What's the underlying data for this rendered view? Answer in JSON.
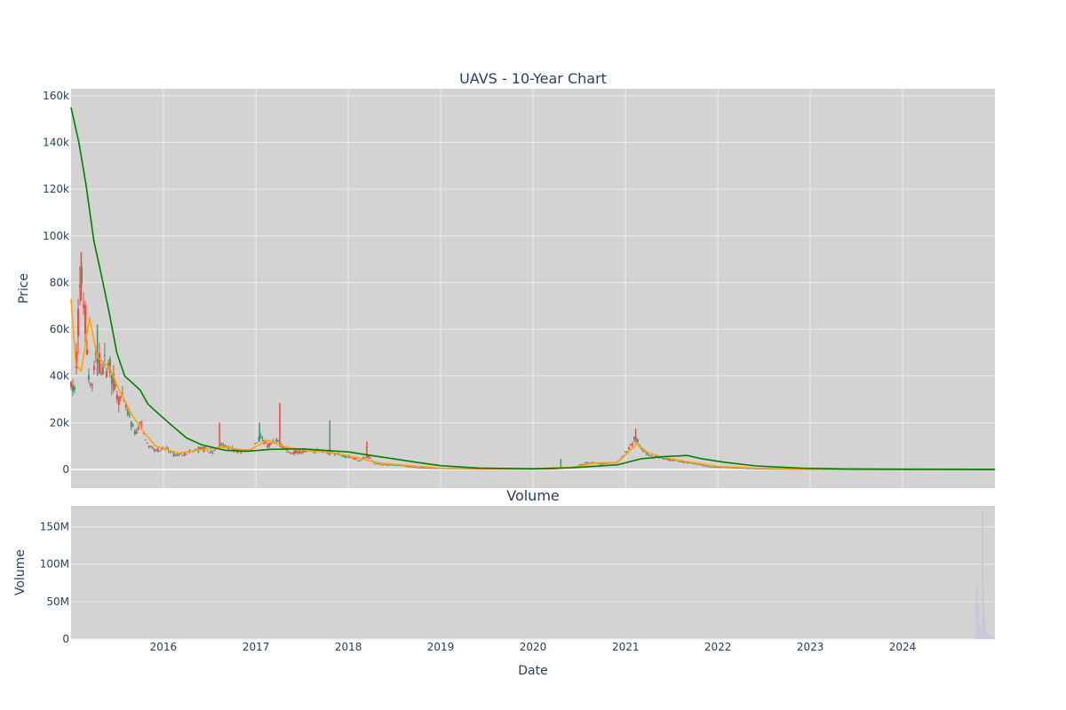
{
  "chart_data": [
    {
      "type": "candlestick",
      "title": "UAVS - 10-Year Chart",
      "ylabel": "Price",
      "xlabel": "",
      "xlim": [
        "2015-01-01",
        "2024-12-31"
      ],
      "ylim": [
        -8000,
        163000
      ],
      "y_ticks": [
        0,
        20000,
        40000,
        60000,
        80000,
        100000,
        120000,
        140000,
        160000
      ],
      "y_tick_labels": [
        "0",
        "20k",
        "40k",
        "60k",
        "80k",
        "100k",
        "120k",
        "140k",
        "160k"
      ],
      "x_ticks": [
        "2016-01-01",
        "2017-01-01",
        "2018-01-01",
        "2019-01-01",
        "2020-01-01",
        "2021-01-01",
        "2022-01-01",
        "2023-01-01",
        "2024-01-01"
      ],
      "x_tick_labels": [
        "2016",
        "2017",
        "2018",
        "2019",
        "2020",
        "2021",
        "2022",
        "2023",
        "2024"
      ],
      "show_x_tick_labels": false,
      "grid": true,
      "increasing_color": "#3d9970",
      "decreasing_color": "#ff4136",
      "price_key_points": [
        [
          "2015-01-01",
          36000
        ],
        [
          "2015-01-15",
          33000
        ],
        [
          "2015-02-01",
          70000
        ],
        [
          "2015-02-10",
          85000
        ],
        [
          "2015-02-20",
          70000
        ],
        [
          "2015-03-01",
          62000
        ],
        [
          "2015-03-10",
          40000
        ],
        [
          "2015-03-25",
          35000
        ],
        [
          "2015-04-10",
          48000
        ],
        [
          "2015-05-01",
          44000
        ],
        [
          "2015-06-01",
          45000
        ],
        [
          "2015-07-01",
          32000
        ],
        [
          "2015-08-01",
          28000
        ],
        [
          "2015-09-01",
          18000
        ],
        [
          "2015-09-15",
          15000
        ],
        [
          "2015-10-01",
          20000
        ],
        [
          "2015-11-01",
          10000
        ],
        [
          "2015-12-15",
          8000
        ],
        [
          "2016-01-15",
          9000
        ],
        [
          "2016-02-15",
          6000
        ],
        [
          "2016-04-01",
          7000
        ],
        [
          "2016-06-01",
          9000
        ],
        [
          "2016-07-15",
          7000
        ],
        [
          "2016-08-15",
          11000
        ],
        [
          "2016-09-15",
          9000
        ],
        [
          "2016-11-01",
          7500
        ],
        [
          "2016-12-15",
          8500
        ],
        [
          "2017-01-15",
          14000
        ],
        [
          "2017-02-15",
          10000
        ],
        [
          "2017-04-01",
          12000
        ],
        [
          "2017-05-15",
          7000
        ],
        [
          "2017-07-01",
          8000
        ],
        [
          "2017-09-01",
          8000
        ],
        [
          "2017-11-01",
          7000
        ],
        [
          "2018-01-01",
          5500
        ],
        [
          "2018-02-15",
          4000
        ],
        [
          "2018-03-20",
          6000
        ],
        [
          "2018-04-15",
          2500
        ],
        [
          "2018-06-01",
          2000
        ],
        [
          "2018-08-01",
          1800
        ],
        [
          "2018-10-01",
          800
        ],
        [
          "2019-01-01",
          500
        ],
        [
          "2019-06-01",
          300
        ],
        [
          "2020-01-01",
          250
        ],
        [
          "2020-04-01",
          400
        ],
        [
          "2020-06-01",
          1000
        ],
        [
          "2020-08-01",
          3000
        ],
        [
          "2020-10-01",
          2500
        ],
        [
          "2020-12-01",
          3000
        ],
        [
          "2021-01-15",
          9000
        ],
        [
          "2021-02-10",
          14000
        ],
        [
          "2021-03-01",
          9000
        ],
        [
          "2021-04-01",
          6000
        ],
        [
          "2021-06-01",
          4500
        ],
        [
          "2021-08-01",
          3500
        ],
        [
          "2021-10-01",
          2500
        ],
        [
          "2021-12-01",
          1200
        ],
        [
          "2022-03-01",
          800
        ],
        [
          "2022-06-01",
          400
        ],
        [
          "2022-09-01",
          250
        ],
        [
          "2023-01-01",
          150
        ],
        [
          "2023-06-01",
          80
        ],
        [
          "2024-01-01",
          50
        ],
        [
          "2024-12-31",
          20
        ]
      ],
      "price_spikes": [
        [
          "2015-02-10",
          93000
        ],
        [
          "2015-04-15",
          62000
        ],
        [
          "2016-08-10",
          20000
        ],
        [
          "2017-01-15",
          20000
        ],
        [
          "2017-04-05",
          28500
        ],
        [
          "2017-10-20",
          21000
        ],
        [
          "2018-03-15",
          12000
        ],
        [
          "2020-04-20",
          4500
        ],
        [
          "2021-02-10",
          17500
        ]
      ],
      "series": [
        {
          "type": "line",
          "color": "#ffa500",
          "points": [
            [
              "2015-01-01",
              73000
            ],
            [
              "2015-01-20",
              45000
            ],
            [
              "2015-02-10",
              42000
            ],
            [
              "2015-03-15",
              65000
            ],
            [
              "2015-04-15",
              48000
            ],
            [
              "2015-06-01",
              44000
            ],
            [
              "2015-07-15",
              33000
            ],
            [
              "2015-09-01",
              23000
            ],
            [
              "2015-10-15",
              16000
            ],
            [
              "2015-12-01",
              10000
            ],
            [
              "2016-03-01",
              7000
            ],
            [
              "2016-06-01",
              8500
            ],
            [
              "2016-09-01",
              9500
            ],
            [
              "2016-12-01",
              8000
            ],
            [
              "2017-02-15",
              12500
            ],
            [
              "2017-05-01",
              9500
            ],
            [
              "2017-08-01",
              8000
            ],
            [
              "2017-11-01",
              7200
            ],
            [
              "2018-02-01",
              5200
            ],
            [
              "2018-05-01",
              2800
            ],
            [
              "2018-09-01",
              1600
            ],
            [
              "2019-01-01",
              500
            ],
            [
              "2020-01-01",
              300
            ],
            [
              "2020-06-01",
              900
            ],
            [
              "2020-09-01",
              2700
            ],
            [
              "2020-12-01",
              3000
            ],
            [
              "2021-02-15",
              11000
            ],
            [
              "2021-04-01",
              7000
            ],
            [
              "2021-07-01",
              4500
            ],
            [
              "2021-10-01",
              2800
            ],
            [
              "2022-01-01",
              1300
            ],
            [
              "2022-06-01",
              500
            ],
            [
              "2023-01-01",
              160
            ],
            [
              "2024-12-31",
              20
            ]
          ]
        },
        {
          "type": "line",
          "color": "#008000",
          "points": [
            [
              "2015-01-01",
              155000
            ],
            [
              "2015-02-01",
              140000
            ],
            [
              "2015-03-01",
              122000
            ],
            [
              "2015-04-01",
              98000
            ],
            [
              "2015-05-01",
              83000
            ],
            [
              "2015-06-01",
              67000
            ],
            [
              "2015-07-01",
              50000
            ],
            [
              "2015-08-01",
              40000
            ],
            [
              "2015-09-01",
              37000
            ],
            [
              "2015-10-01",
              34000
            ],
            [
              "2015-11-01",
              28000
            ],
            [
              "2015-12-01",
              25000
            ],
            [
              "2016-02-01",
              19000
            ],
            [
              "2016-04-01",
              13500
            ],
            [
              "2016-06-01",
              10500
            ],
            [
              "2016-09-01",
              8200
            ],
            [
              "2016-12-01",
              7800
            ],
            [
              "2017-03-01",
              8600
            ],
            [
              "2017-07-01",
              8800
            ],
            [
              "2017-10-01",
              8200
            ],
            [
              "2018-01-01",
              7500
            ],
            [
              "2018-04-01",
              6000
            ],
            [
              "2018-07-01",
              4500
            ],
            [
              "2018-10-01",
              3000
            ],
            [
              "2019-01-01",
              1600
            ],
            [
              "2019-06-01",
              600
            ],
            [
              "2020-01-01",
              300
            ],
            [
              "2020-06-01",
              700
            ],
            [
              "2020-12-01",
              2000
            ],
            [
              "2021-03-01",
              4500
            ],
            [
              "2021-06-01",
              5500
            ],
            [
              "2021-09-01",
              6000
            ],
            [
              "2021-11-01",
              4500
            ],
            [
              "2022-02-01",
              3000
            ],
            [
              "2022-06-01",
              1500
            ],
            [
              "2022-12-01",
              500
            ],
            [
              "2023-06-01",
              200
            ],
            [
              "2024-01-01",
              100
            ],
            [
              "2024-12-31",
              50
            ]
          ]
        }
      ]
    },
    {
      "type": "bar",
      "title": "Volume",
      "ylabel": "Volume",
      "xlabel": "Date",
      "xlim": [
        "2015-01-01",
        "2024-12-31"
      ],
      "ylim": [
        0,
        178000000
      ],
      "y_ticks": [
        0,
        50000000,
        100000000,
        150000000
      ],
      "y_tick_labels": [
        "0",
        "50M",
        "100M",
        "150M"
      ],
      "x_ticks": [
        "2016-01-01",
        "2017-01-01",
        "2018-01-01",
        "2019-01-01",
        "2020-01-01",
        "2021-01-01",
        "2022-01-01",
        "2023-01-01",
        "2024-01-01"
      ],
      "x_tick_labels": [
        "2016",
        "2017",
        "2018",
        "2019",
        "2020",
        "2021",
        "2022",
        "2023",
        "2024"
      ],
      "grid": true,
      "bar_color": "#c8c8d8",
      "bars": [
        [
          "2024-10-20",
          75000000
        ],
        [
          "2024-10-25",
          48000000
        ],
        [
          "2024-11-01",
          20000000
        ],
        [
          "2024-11-05",
          8000000
        ],
        [
          "2024-11-12",
          170000000
        ],
        [
          "2024-11-14",
          72000000
        ],
        [
          "2024-11-18",
          35000000
        ],
        [
          "2024-11-22",
          15000000
        ],
        [
          "2024-11-28",
          10000000
        ],
        [
          "2024-12-05",
          6000000
        ],
        [
          "2024-12-12",
          4000000
        ],
        [
          "2024-12-20",
          3000000
        ],
        [
          "2024-12-28",
          2000000
        ]
      ]
    }
  ]
}
